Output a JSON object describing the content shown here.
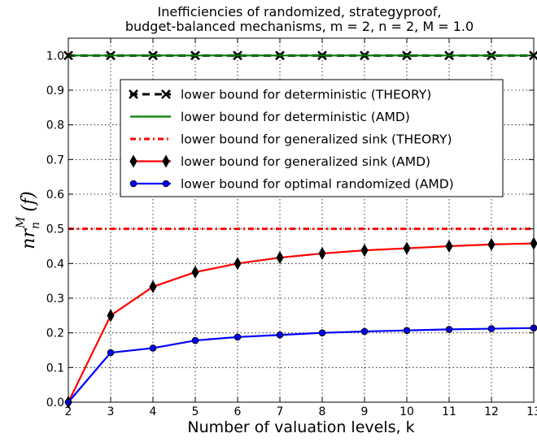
{
  "chart_data": {
    "type": "line",
    "title_lines": [
      "Inefficiencies of randomized, strategyproof,",
      "budget-balanced mechanisms, m = 2, n = 2, M = 1.0"
    ],
    "xlabel": "Number of valuation levels, k",
    "ylabel": "nr_n^M (f)",
    "xlim": [
      2,
      13
    ],
    "ylim": [
      0.0,
      1.05
    ],
    "x": [
      2,
      3,
      4,
      5,
      6,
      7,
      8,
      9,
      10,
      11,
      12,
      13
    ],
    "xticks": [
      2,
      3,
      4,
      5,
      6,
      7,
      8,
      9,
      10,
      11,
      12,
      13
    ],
    "yticks": [
      "0.0",
      "0.1",
      "0.2",
      "0.3",
      "0.4",
      "0.5",
      "0.6",
      "0.7",
      "0.8",
      "0.9",
      "1.0"
    ],
    "grid": true,
    "legend_position": "upper center",
    "series": [
      {
        "name": "lower bound for deterministic (THEORY)",
        "color": "#000000",
        "style": "dashed",
        "marker": "x",
        "values": [
          1.0,
          1.0,
          1.0,
          1.0,
          1.0,
          1.0,
          1.0,
          1.0,
          1.0,
          1.0,
          1.0,
          1.0
        ]
      },
      {
        "name": "lower bound for deterministic (AMD)",
        "color": "#008000",
        "style": "solid",
        "marker": "none",
        "values": [
          1.0,
          1.0,
          1.0,
          1.0,
          1.0,
          1.0,
          1.0,
          1.0,
          1.0,
          1.0,
          1.0,
          1.0
        ]
      },
      {
        "name": "lower bound for generalized sink (THEORY)",
        "color": "#ff0000",
        "style": "dashdot",
        "marker": "none",
        "values": [
          0.5,
          0.5,
          0.5,
          0.5,
          0.5,
          0.5,
          0.5,
          0.5,
          0.5,
          0.5,
          0.5,
          0.5
        ]
      },
      {
        "name": "lower bound for generalized sink (AMD)",
        "color": "#ff0000",
        "style": "solid",
        "marker": "thin_diamond",
        "values": [
          0.0,
          0.25,
          0.333,
          0.375,
          0.4,
          0.417,
          0.429,
          0.438,
          0.444,
          0.45,
          0.455,
          0.458
        ]
      },
      {
        "name": "lower bound for optimal randomized (AMD)",
        "color": "#0000ff",
        "style": "solid",
        "marker": "circle",
        "values": [
          0.0,
          0.143,
          0.156,
          0.178,
          0.188,
          0.194,
          0.2,
          0.204,
          0.207,
          0.21,
          0.212,
          0.214
        ]
      }
    ]
  }
}
